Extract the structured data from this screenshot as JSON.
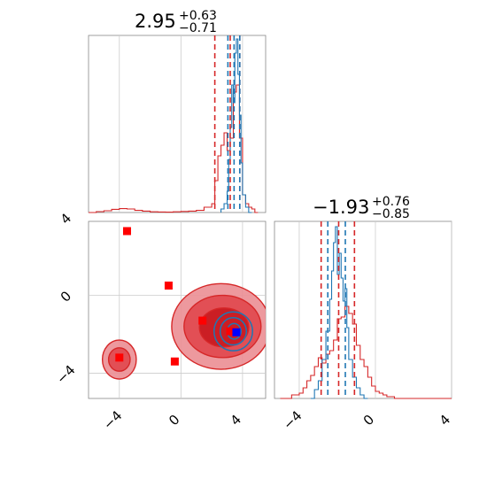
{
  "chart_data": [
    {
      "type": "histogram",
      "title": {
        "median": "2.95",
        "upper": "+0.63",
        "lower": "−0.71"
      },
      "xlim": [
        -6,
        5.5
      ],
      "grid": true,
      "colors": {
        "red": "#d62728",
        "blue": "#1f77b4"
      },
      "gridlines_x": [
        -4,
        0,
        4
      ],
      "series": [
        {
          "name": "",
          "color": "#d62728",
          "x_edges": [
            -6.0,
            -5.5,
            -5.0,
            -4.5,
            -4.0,
            -3.5,
            -3.0,
            -2.5,
            -2.0,
            -1.5,
            -1.0,
            -0.5,
            0.0,
            0.5,
            1.0,
            1.5,
            2.0,
            2.2,
            2.4,
            2.6,
            2.8,
            3.0,
            3.2,
            3.4,
            3.6,
            3.8,
            4.0,
            4.2,
            4.4,
            4.6,
            4.8,
            5.0
          ],
          "heights": [
            0.0,
            0.005,
            0.01,
            0.018,
            0.022,
            0.02,
            0.012,
            0.008,
            0.004,
            0.003,
            0.002,
            0.004,
            0.006,
            0.008,
            0.012,
            0.03,
            0.05,
            0.18,
            0.32,
            0.38,
            0.45,
            0.35,
            0.42,
            0.68,
            0.72,
            0.42,
            0.1,
            0.05,
            0.03,
            0.02,
            0.0
          ]
        },
        {
          "name": "",
          "color": "#1f77b4",
          "x_edges": [
            2.6,
            2.8,
            3.0,
            3.1,
            3.2,
            3.3,
            3.4,
            3.5,
            3.6,
            3.7,
            3.8,
            3.9,
            4.0,
            4.2,
            4.4,
            4.6
          ],
          "heights": [
            0.02,
            0.05,
            0.12,
            0.3,
            0.48,
            0.72,
            0.62,
            0.9,
            0.98,
            0.78,
            0.55,
            0.28,
            0.1,
            0.03,
            0.0
          ]
        }
      ],
      "vlines": [
        {
          "x": 2.2,
          "color": "#d62728"
        },
        {
          "x": 3.2,
          "color": "#d62728"
        },
        {
          "x": 3.82,
          "color": "#d62728"
        },
        {
          "x": 3.05,
          "color": "#1f77b4"
        },
        {
          "x": 3.45,
          "color": "#1f77b4"
        },
        {
          "x": 3.82,
          "color": "#1f77b4"
        }
      ]
    },
    {
      "type": "scatter",
      "xlim": [
        -6,
        5.5
      ],
      "ylim": [
        -5.3,
        3.8
      ],
      "xticks": [
        "−4",
        "0",
        "4"
      ],
      "yticks": [
        "4",
        "0",
        "−4"
      ],
      "xtick_values": [
        -4,
        0,
        4
      ],
      "ytick_values": [
        4,
        0,
        -4
      ],
      "grid": true,
      "red_points": [
        [
          -3.5,
          3.3
        ],
        [
          -0.8,
          0.5
        ],
        [
          -0.4,
          -3.4
        ],
        [
          1.4,
          -1.3
        ],
        [
          3.2,
          -1.85
        ],
        [
          -4.0,
          -3.2
        ]
      ],
      "blue_points": [
        [
          3.6,
          -1.9
        ]
      ],
      "red_contours": [
        {
          "cx": 2.6,
          "cy": -1.6,
          "rx": 3.2,
          "ry": 2.2,
          "level": 1
        },
        {
          "cx": 2.7,
          "cy": -1.6,
          "rx": 2.5,
          "ry": 1.6,
          "level": 2
        },
        {
          "cx": 2.8,
          "cy": -1.65,
          "rx": 1.6,
          "ry": 1.0,
          "level": 3
        },
        {
          "cx": -4.0,
          "cy": -3.3,
          "rx": 1.1,
          "ry": 1.0,
          "level": 1
        },
        {
          "cx": -4.0,
          "cy": -3.3,
          "rx": 0.7,
          "ry": 0.6,
          "level": 2
        }
      ],
      "blue_contours": [
        {
          "cx": 3.4,
          "cy": -1.85,
          "rx": 1.25,
          "ry": 1.0
        },
        {
          "cx": 3.4,
          "cy": -1.85,
          "rx": 0.85,
          "ry": 0.7
        },
        {
          "cx": 3.45,
          "cy": -1.85,
          "rx": 0.45,
          "ry": 0.4
        }
      ]
    },
    {
      "type": "histogram",
      "title": {
        "median": "−1.93",
        "upper": "+0.76",
        "lower": "−0.85"
      },
      "xlim": [
        -5.3,
        4.0
      ],
      "xticks": [
        "−4",
        "0",
        "4"
      ],
      "xtick_values": [
        -4,
        0,
        4
      ],
      "grid": true,
      "series": [
        {
          "name": "",
          "color": "#d62728",
          "x_edges": [
            -5.0,
            -4.4,
            -4.0,
            -3.8,
            -3.6,
            -3.4,
            -3.2,
            -3.0,
            -2.8,
            -2.6,
            -2.4,
            -2.2,
            -2.0,
            -1.8,
            -1.6,
            -1.4,
            -1.2,
            -1.0,
            -0.8,
            -0.6,
            -0.4,
            -0.2,
            0.0,
            0.2,
            0.4,
            0.6,
            1.0,
            4.0
          ],
          "heights": [
            0.0,
            0.02,
            0.03,
            0.06,
            0.1,
            0.13,
            0.18,
            0.23,
            0.2,
            0.25,
            0.27,
            0.33,
            0.45,
            0.46,
            0.52,
            0.48,
            0.42,
            0.3,
            0.22,
            0.18,
            0.12,
            0.07,
            0.04,
            0.03,
            0.02,
            0.01,
            0.0
          ]
        },
        {
          "name": "",
          "color": "#1f77b4",
          "x_edges": [
            -3.4,
            -3.2,
            -3.0,
            -2.8,
            -2.6,
            -2.4,
            -2.3,
            -2.2,
            -2.1,
            -2.0,
            -1.9,
            -1.8,
            -1.7,
            -1.6,
            -1.5,
            -1.4,
            -1.2,
            -1.0,
            -0.8,
            -0.6,
            -0.4
          ],
          "heights": [
            0.0,
            0.05,
            0.1,
            0.22,
            0.38,
            0.56,
            0.72,
            0.88,
            0.97,
            0.7,
            0.82,
            0.68,
            0.55,
            0.62,
            0.4,
            0.22,
            0.12,
            0.06,
            0.02,
            0.0
          ]
        }
      ],
      "vlines": [
        {
          "x": -2.85,
          "color": "#d62728"
        },
        {
          "x": -1.93,
          "color": "#d62728"
        },
        {
          "x": -1.1,
          "color": "#d62728"
        },
        {
          "x": -2.5,
          "color": "#1f77b4"
        },
        {
          "x": -1.58,
          "color": "#1f77b4"
        }
      ]
    }
  ]
}
